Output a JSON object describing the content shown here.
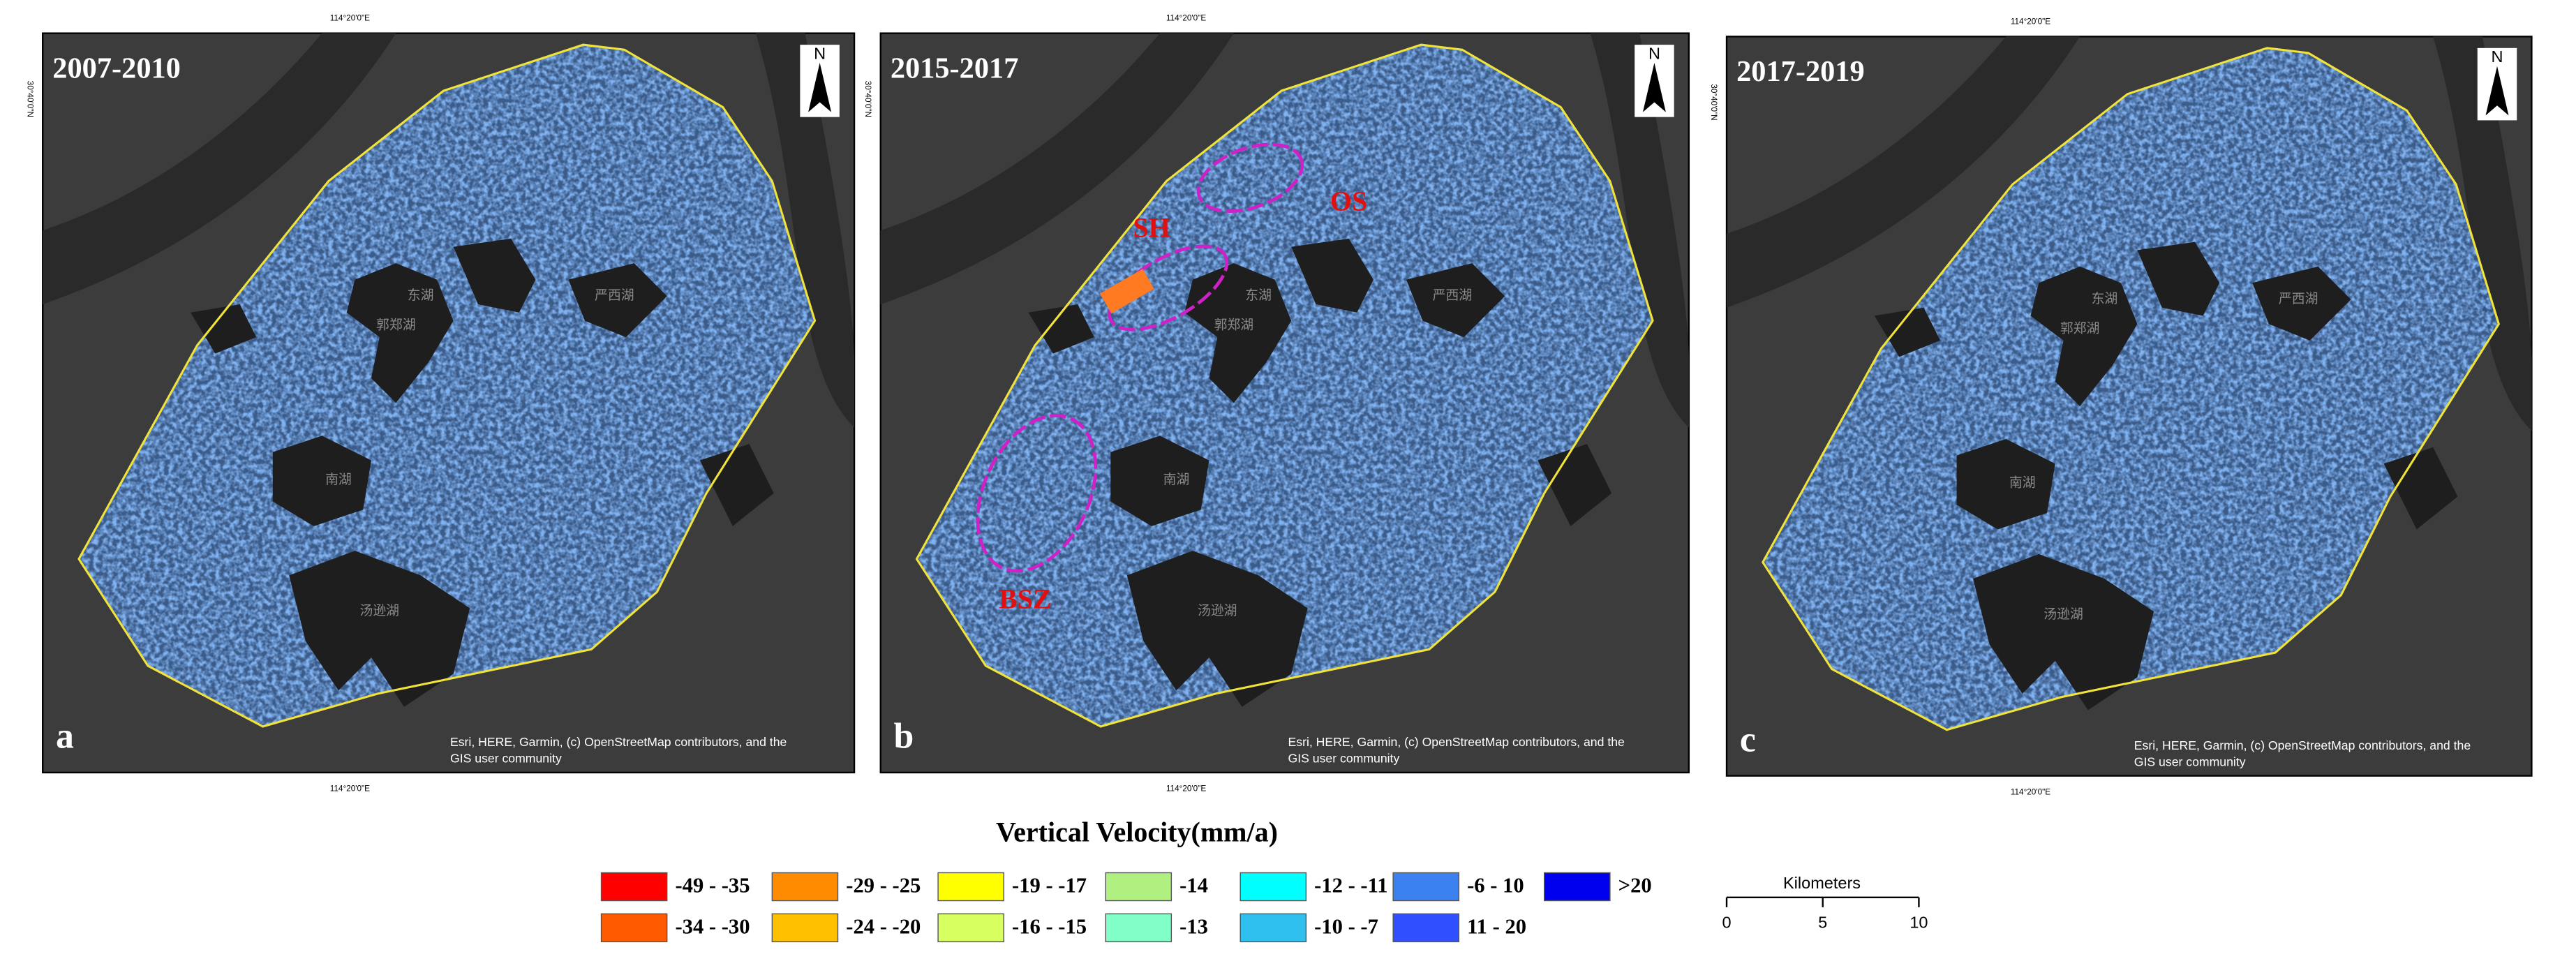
{
  "panels": [
    {
      "period": "2007-2010",
      "letter": "a",
      "top_coord": "114°20'0\"E",
      "bottom_coord": "114°20'0\"E",
      "side_coord": "30°40'0\"N",
      "north": "N",
      "attribution": [
        "Esri, HERE, Garmin, (c) OpenStreetMap contributors, and the",
        "GIS user community"
      ],
      "annotations": []
    },
    {
      "period": "2015-2017",
      "letter": "b",
      "top_coord": "114°20'0\"E",
      "bottom_coord": "114°20'0\"E",
      "side_coord": "30°40'0\"N",
      "north": "N",
      "attribution": [
        "Esri, HERE, Garmin, (c) OpenStreetMap contributors, and the",
        "GIS user community"
      ],
      "annotations": [
        "SH",
        "OS",
        "BSZ"
      ]
    },
    {
      "period": "2017-2019",
      "letter": "c",
      "top_coord": "114°20'0\"E",
      "bottom_coord": "114°20'0\"E",
      "side_coord": "30°40'0\"N",
      "north": "N",
      "attribution": [
        "Esri, HERE, Garmin, (c) OpenStreetMap contributors, and the",
        "GIS user community"
      ],
      "annotations": []
    }
  ],
  "lake_labels": [
    "东湖",
    "郭郑湖",
    "南湖",
    "汤逊湖",
    "严西湖"
  ],
  "legend": {
    "title": "Vertical Velocity(mm/a)",
    "items": [
      {
        "label": "-49 - -35",
        "color": "#ff0000"
      },
      {
        "label": "-34 - -30",
        "color": "#ff5a00"
      },
      {
        "label": "-29 - -25",
        "color": "#ff8c00"
      },
      {
        "label": "-24 - -20",
        "color": "#ffc000"
      },
      {
        "label": "-19 - -17",
        "color": "#ffff00"
      },
      {
        "label": "-16 - -15",
        "color": "#d8ff60"
      },
      {
        "label": "-14",
        "color": "#b0f080"
      },
      {
        "label": "-13",
        "color": "#80ffc8"
      },
      {
        "label": "-12 - -11",
        "color": "#00ffff"
      },
      {
        "label": "-10 - -7",
        "color": "#30c0f0"
      },
      {
        "label": "-6 - 10",
        "color": "#3b82f0"
      },
      {
        "label": "11 - 20",
        "color": "#3050ff"
      },
      {
        "label": ">20",
        "color": "#0000ee"
      }
    ]
  },
  "scale_bar": {
    "title": "Kilometers",
    "ticks": [
      "0",
      "5",
      "10"
    ]
  }
}
